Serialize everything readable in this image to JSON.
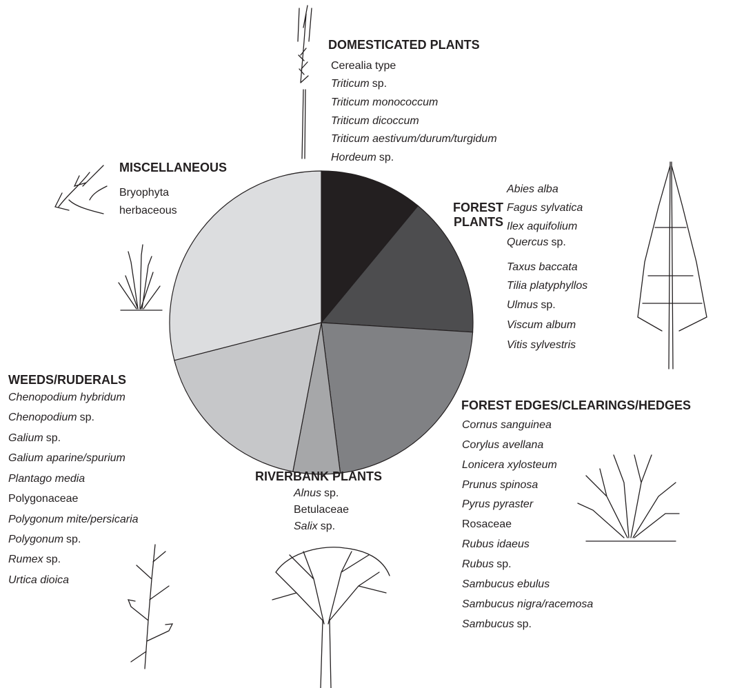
{
  "chart_data": {
    "type": "pie",
    "categories": [
      "DOMESTICATED PLANTS",
      "FOREST PLANTS",
      "FOREST EDGES/CLEARINGS/HEDGES",
      "RIVERBANK PLANTS",
      "WEEDS/RUDERALS",
      "MISCELLANEOUS"
    ],
    "values": [
      11,
      15,
      22,
      5,
      18,
      29
    ],
    "colors": [
      "#231f20",
      "#4d4d4f",
      "#808184",
      "#a6a7a9",
      "#c6c7c9",
      "#dcdddf"
    ],
    "species": [
      [
        {
          "plain": "Cerealia type"
        },
        {
          "italic": "Triticum",
          "plain": "sp."
        },
        {
          "italic": "Triticum monococcum"
        },
        {
          "italic": "Triticum dicoccum"
        },
        {
          "italic": "Triticum aestivum/durum/turgidum"
        },
        {
          "italic": "Hordeum",
          "plain": "sp."
        }
      ],
      [
        {
          "italic": "Abies alba"
        },
        {
          "italic": "Fagus sylvatica"
        },
        {
          "italic": "Ilex aquifolium"
        },
        {
          "italic": "Quercus",
          "plain": "sp."
        },
        {
          "italic": "Taxus baccata"
        },
        {
          "italic": "Tilia platyphyllos"
        },
        {
          "italic": "Ulmus",
          "plain": "sp."
        },
        {
          "italic": "Viscum album"
        },
        {
          "italic": "Vitis sylvestris"
        }
      ],
      [
        {
          "italic": "Cornus sanguinea"
        },
        {
          "italic": "Corylus avellana"
        },
        {
          "italic": "Lonicera xylosteum"
        },
        {
          "italic": "Prunus spinosa"
        },
        {
          "italic": "Pyrus pyraster"
        },
        {
          "plain": "Rosaceae"
        },
        {
          "italic": "Rubus idaeus"
        },
        {
          "italic": "Rubus",
          "plain": "sp."
        },
        {
          "italic": "Sambucus ebulus"
        },
        {
          "italic": "Sambucus nigra/racemosa"
        },
        {
          "italic": "Sambucus",
          "plain": "sp."
        }
      ],
      [
        {
          "italic": "Alnus",
          "plain": "sp."
        },
        {
          "plain": "Betulaceae"
        },
        {
          "italic": "Salix",
          "plain": "sp."
        }
      ],
      [
        {
          "italic": "Chenopodium hybridum"
        },
        {
          "italic": "Chenopodium",
          "plain": "sp."
        },
        {
          "italic": "Galium",
          "plain": "sp."
        },
        {
          "italic": "Galium aparine/spurium"
        },
        {
          "italic": "Plantago media"
        },
        {
          "plain": "Polygonaceae"
        },
        {
          "italic": "Polygonum mite/persicaria"
        },
        {
          "italic": "Polygonum",
          "plain": "sp."
        },
        {
          "italic": "Rumex",
          "plain": "sp."
        },
        {
          "italic": "Urtica dioica"
        }
      ],
      [
        {
          "plain": "Bryophyta"
        },
        {
          "plain": "herbaceous"
        }
      ]
    ]
  }
}
